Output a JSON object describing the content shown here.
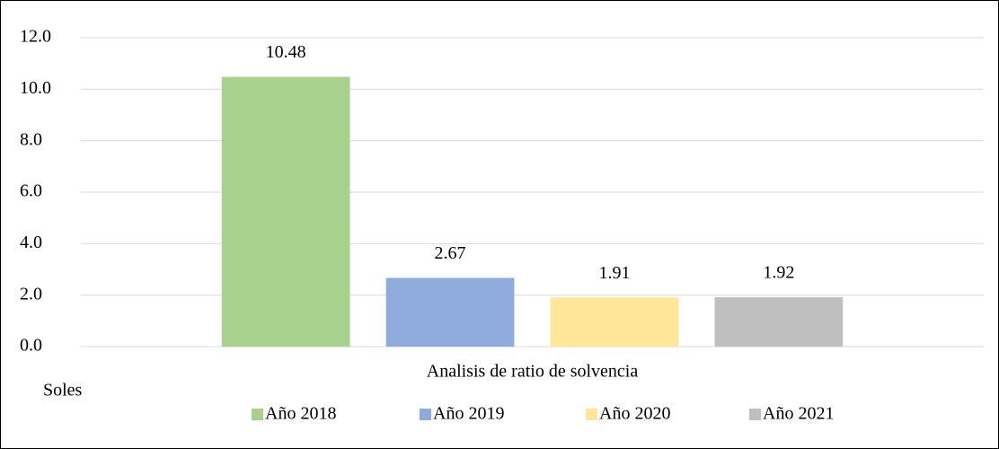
{
  "chart_data": {
    "type": "bar",
    "categories": [
      "Analisis de ratio de solvencia"
    ],
    "series": [
      {
        "name": "Año 2018",
        "color": "#a9d18e",
        "values": [
          10.48
        ]
      },
      {
        "name": "Año 2019",
        "color": "#8faadc",
        "values": [
          2.67
        ]
      },
      {
        "name": "Año 2020",
        "color": "#ffe699",
        "values": [
          1.91
        ]
      },
      {
        "name": "Año 2021",
        "color": "#bfbfbf",
        "values": [
          1.92
        ]
      }
    ],
    "ylabel": "Soles",
    "ylim": [
      0,
      12
    ],
    "yticks": [
      {
        "value": 0,
        "label": "0.0"
      },
      {
        "value": 2,
        "label": "2.0"
      },
      {
        "value": 4,
        "label": "4.0"
      },
      {
        "value": 6,
        "label": "6.0"
      },
      {
        "value": 8,
        "label": "8.0"
      },
      {
        "value": 10,
        "label": "10.0"
      },
      {
        "value": 12,
        "label": "12.0"
      }
    ],
    "grid": true,
    "legend": "bottom"
  }
}
